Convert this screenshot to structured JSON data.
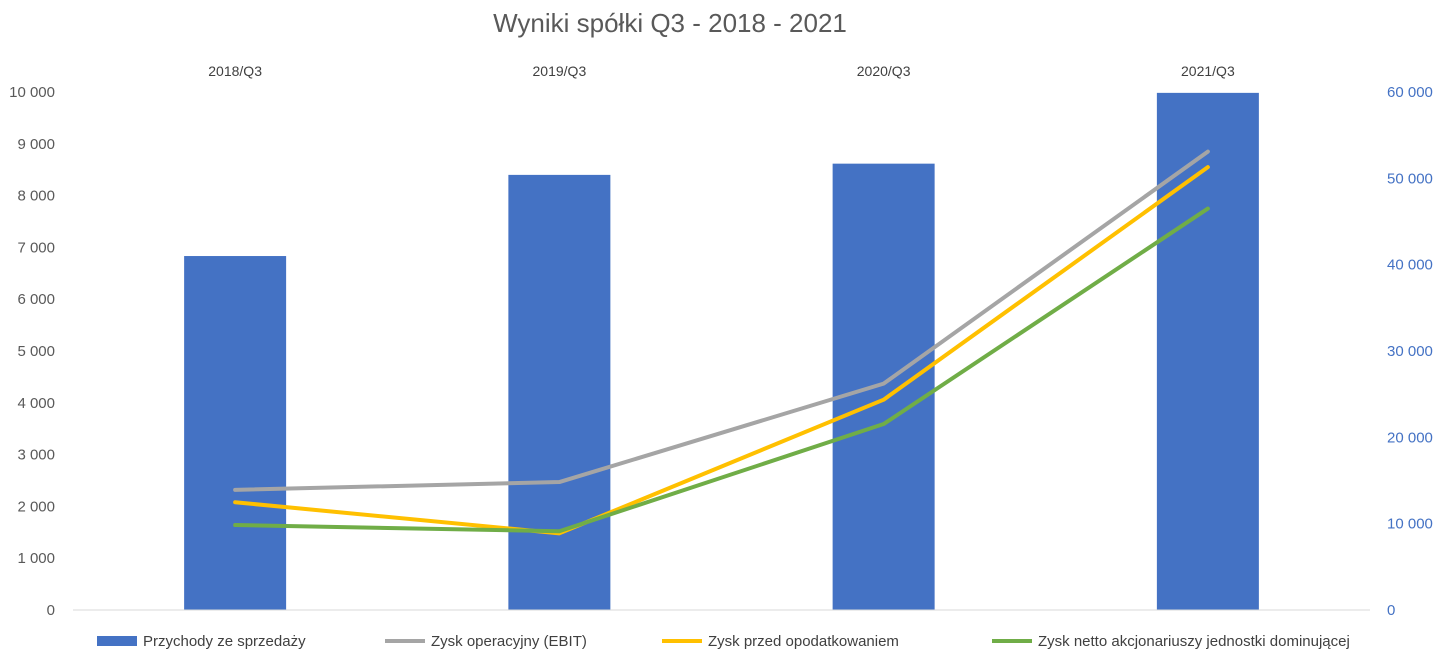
{
  "chart_data": {
    "type": "bar",
    "title": "Wyniki spółki Q3 - 2018 - 2021",
    "categories": [
      "2018/Q3",
      "2019/Q3",
      "2020/Q3",
      "2021/Q3"
    ],
    "y_left": {
      "ylim": [
        0,
        10000
      ],
      "ticks": [
        "0",
        "1 000",
        "2 000",
        "3 000",
        "4 000",
        "5 000",
        "6 000",
        "7 000",
        "8 000",
        "9 000",
        "10 000"
      ]
    },
    "y_right": {
      "ylim": [
        0,
        60000
      ],
      "ticks": [
        "0",
        "10 000",
        "20 000",
        "30 000",
        "40 000",
        "50 000",
        "60 000"
      ]
    },
    "series": [
      {
        "name": "Przychody ze sprzedaży",
        "kind": "bar",
        "axis": "right",
        "color": "#4472c4",
        "values": [
          41000,
          50400,
          51700,
          59900
        ]
      },
      {
        "name": "Zysk operacyjny (EBIT)",
        "kind": "line",
        "axis": "left",
        "color": "#a5a5a5",
        "values": [
          2320,
          2470,
          4370,
          8850
        ]
      },
      {
        "name": "Zysk przed opodatkowaniem",
        "kind": "line",
        "axis": "left",
        "color": "#ffc000",
        "values": [
          2080,
          1480,
          4060,
          8550
        ]
      },
      {
        "name": "Zysk netto akcjonariuszy jednostki dominującej",
        "kind": "line",
        "axis": "left",
        "color": "#70ad47",
        "values": [
          1640,
          1520,
          3590,
          7750
        ]
      }
    ],
    "legend_position": "bottom",
    "grid": false
  }
}
